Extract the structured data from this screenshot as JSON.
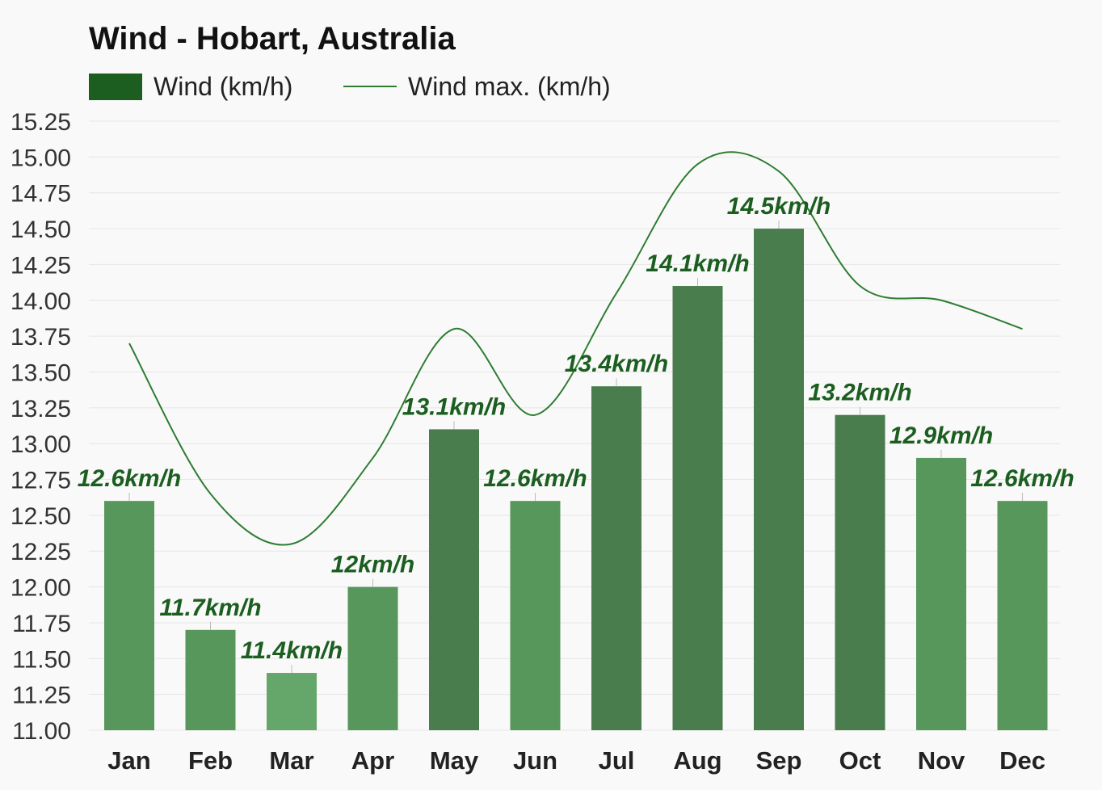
{
  "chart_data": {
    "type": "bar",
    "title": "Wind - Hobart, Australia",
    "xlabel": "",
    "ylabel": "",
    "ylim": [
      11.0,
      15.25
    ],
    "yticks": [
      "11.00",
      "11.25",
      "11.50",
      "11.75",
      "12.00",
      "12.25",
      "12.50",
      "12.75",
      "13.00",
      "13.25",
      "13.50",
      "13.75",
      "14.00",
      "14.25",
      "14.50",
      "14.75",
      "15.00",
      "15.25"
    ],
    "grid": true,
    "legend_position": "top-left",
    "categories": [
      "Jan",
      "Feb",
      "Mar",
      "Apr",
      "May",
      "Jun",
      "Jul",
      "Aug",
      "Sep",
      "Oct",
      "Nov",
      "Dec"
    ],
    "series": [
      {
        "name": "Wind (km/h)",
        "kind": "bar",
        "values": [
          12.6,
          11.7,
          11.4,
          12.0,
          13.1,
          12.6,
          13.4,
          14.1,
          14.5,
          13.2,
          12.9,
          12.6
        ],
        "labels": [
          "12.6km/h",
          "11.7km/h",
          "11.4km/h",
          "12km/h",
          "13.1km/h",
          "12.6km/h",
          "13.4km/h",
          "14.1km/h",
          "14.5km/h",
          "13.2km/h",
          "12.9km/h",
          "12.6km/h"
        ],
        "colors": [
          "#58975c",
          "#58975c",
          "#65a76a",
          "#58975c",
          "#4a7d4d",
          "#58975c",
          "#4a7d4d",
          "#4a7d4d",
          "#4a7d4d",
          "#4a7d4d",
          "#58975c",
          "#58975c"
        ]
      },
      {
        "name": "Wind max. (km/h)",
        "kind": "line",
        "values": [
          13.7,
          12.65,
          12.3,
          12.9,
          13.8,
          13.2,
          14.05,
          14.95,
          14.9,
          14.1,
          14.0,
          13.8
        ],
        "color": "#2e7d32"
      }
    ],
    "legend": {
      "bar_color": "#1b5e20",
      "line_color": "#2e7d32"
    },
    "colors": {
      "label_text": "#1b5e20",
      "grid": "#e6e6e6",
      "axis_text": "#333333",
      "background": "#f9f9f9"
    }
  }
}
